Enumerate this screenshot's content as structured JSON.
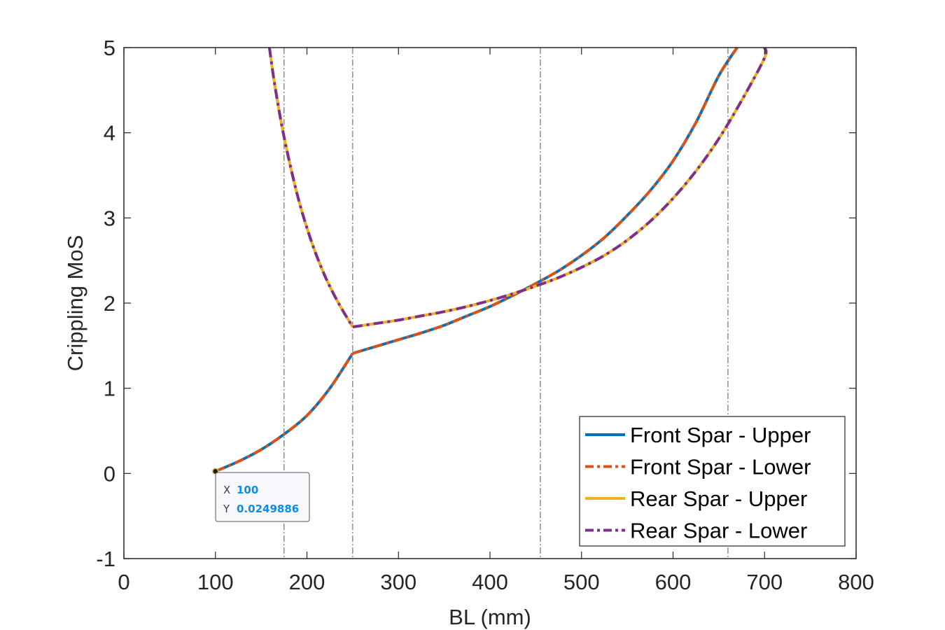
{
  "chart_data": {
    "type": "line",
    "title": "",
    "xlabel": "BL (mm)",
    "ylabel": "Crippling MoS",
    "xlim": [
      0,
      800
    ],
    "ylim": [
      -1,
      5
    ],
    "xticks": [
      "0",
      "100",
      "200",
      "300",
      "400",
      "500",
      "600",
      "700",
      "800"
    ],
    "yticks": [
      "-1",
      "0",
      "1",
      "2",
      "3",
      "4",
      "5"
    ],
    "xtick_values": [
      0,
      100,
      200,
      300,
      400,
      500,
      600,
      700,
      800
    ],
    "ytick_values": [
      -1,
      0,
      1,
      2,
      3,
      4,
      5
    ],
    "grid": false,
    "legend_position": "bottom-right",
    "reference_lines_x": [
      175,
      250,
      455,
      660
    ],
    "series": [
      {
        "name": "Front Spar - Upper",
        "color": "#0072BD",
        "style": "solid",
        "x": [
          100,
          125,
          150,
          175,
          200,
          225,
          250,
          275,
          300,
          325,
          350,
          375,
          400,
          425,
          450,
          475,
          500,
          525,
          550,
          575,
          600,
          625,
          650,
          670
        ],
        "y": [
          0.025,
          0.14,
          0.28,
          0.46,
          0.68,
          1.0,
          1.41,
          1.49,
          1.57,
          1.65,
          1.74,
          1.85,
          1.96,
          2.09,
          2.23,
          2.38,
          2.56,
          2.77,
          3.03,
          3.32,
          3.67,
          4.12,
          4.67,
          5.0
        ]
      },
      {
        "name": "Front Spar - Lower",
        "color": "#D95319",
        "style": "dashdot",
        "x": [
          100,
          125,
          150,
          175,
          200,
          225,
          250,
          275,
          300,
          325,
          350,
          375,
          400,
          425,
          450,
          475,
          500,
          525,
          550,
          575,
          600,
          625,
          650,
          670
        ],
        "y": [
          0.025,
          0.14,
          0.28,
          0.46,
          0.68,
          1.0,
          1.41,
          1.49,
          1.57,
          1.65,
          1.74,
          1.85,
          1.96,
          2.09,
          2.23,
          2.38,
          2.56,
          2.77,
          3.03,
          3.32,
          3.67,
          4.12,
          4.67,
          5.0
        ]
      },
      {
        "name": "Rear Spar - Upper",
        "color": "#EDB120",
        "style": "solid",
        "x": [
          159,
          165,
          175,
          190,
          205,
          220,
          235,
          250,
          275,
          300,
          325,
          350,
          375,
          400,
          425,
          450,
          475,
          500,
          525,
          550,
          575,
          600,
          625,
          650,
          675,
          700,
          700
        ],
        "y": [
          5.0,
          4.55,
          3.95,
          3.25,
          2.72,
          2.31,
          1.99,
          1.72,
          1.76,
          1.8,
          1.85,
          1.9,
          1.96,
          2.03,
          2.11,
          2.2,
          2.3,
          2.42,
          2.56,
          2.74,
          2.96,
          3.23,
          3.55,
          3.93,
          4.38,
          4.88,
          5.0
        ]
      },
      {
        "name": "Rear Spar - Lower",
        "color": "#7E2F8E",
        "style": "dashdot",
        "x": [
          159,
          165,
          175,
          190,
          205,
          220,
          235,
          250,
          275,
          300,
          325,
          350,
          375,
          400,
          425,
          450,
          475,
          500,
          525,
          550,
          575,
          600,
          625,
          650,
          675,
          700,
          700
        ],
        "y": [
          5.0,
          4.55,
          3.95,
          3.25,
          2.72,
          2.31,
          1.99,
          1.72,
          1.76,
          1.8,
          1.85,
          1.9,
          1.96,
          2.03,
          2.11,
          2.2,
          2.3,
          2.42,
          2.56,
          2.74,
          2.96,
          3.23,
          3.55,
          3.93,
          4.38,
          4.88,
          5.0
        ]
      }
    ],
    "datatip": {
      "x_label": "X",
      "x_value": "100",
      "y_label": "Y",
      "y_value": "0.0249886",
      "x": 100,
      "y": 0.0249886
    }
  }
}
